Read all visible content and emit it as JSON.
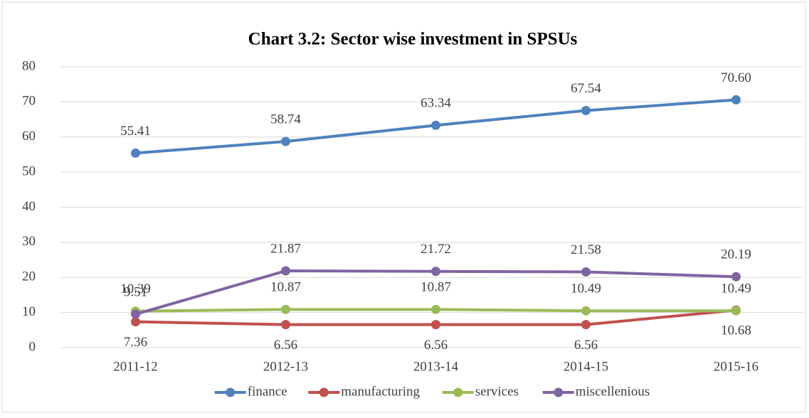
{
  "chart_data": {
    "type": "line",
    "title": "Chart 3.2: Sector wise investment in SPSUs",
    "categories": [
      "2011-12",
      "2012-13",
      "2013-14",
      "2014-15",
      "2015-16"
    ],
    "series": [
      {
        "name": "finance",
        "color": "#4f81bd",
        "values": [
          55.41,
          58.74,
          63.34,
          67.54,
          70.6
        ],
        "value_labels": [
          "55.41",
          "58.74",
          "63.34",
          "67.54",
          "70.60"
        ]
      },
      {
        "name": "manufacturing",
        "color": "#c0504d",
        "values": [
          7.36,
          6.56,
          6.56,
          6.56,
          10.68
        ],
        "value_labels": [
          "7.36",
          "6.56",
          "6.56",
          "6.56",
          "10.68"
        ]
      },
      {
        "name": "services",
        "color": "#9bbb59",
        "values": [
          10.39,
          10.87,
          10.87,
          10.49,
          10.49
        ],
        "value_labels": [
          "10.39",
          "10.87",
          "10.87",
          "10.49",
          "10.49"
        ]
      },
      {
        "name": "miscellenious",
        "color": "#8064a2",
        "values": [
          9.51,
          21.87,
          21.72,
          21.58,
          20.19
        ],
        "value_labels": [
          "9.51",
          "21.87",
          "21.72",
          "21.58",
          "20.19"
        ]
      }
    ],
    "ylim": [
      0,
      80
    ],
    "yticks": [
      0,
      10,
      20,
      30,
      40,
      50,
      60,
      70,
      80
    ],
    "grid": true,
    "legend": "bottom"
  }
}
